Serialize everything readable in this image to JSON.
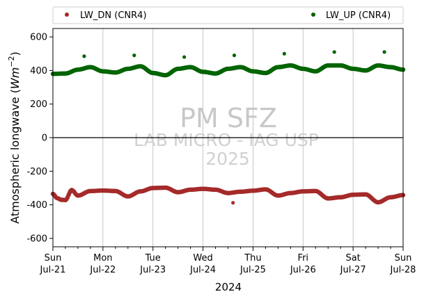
{
  "chart_data": {
    "type": "scatter",
    "title": "",
    "xlabel": "2024",
    "ylabel": "Atmospheric longwave (W m⁻²)",
    "ylim": [
      -650,
      650
    ],
    "yticks": [
      -600,
      -400,
      -200,
      0,
      200,
      400,
      600
    ],
    "xlim_days": [
      0,
      7
    ],
    "xticks": [
      {
        "day": "Sun",
        "date": "Jul-21"
      },
      {
        "day": "Mon",
        "date": "Jul-22"
      },
      {
        "day": "Tue",
        "date": "Jul-23"
      },
      {
        "day": "Wed",
        "date": "Jul-24"
      },
      {
        "day": "Thu",
        "date": "Jul-25"
      },
      {
        "day": "Fri",
        "date": "Jul-26"
      },
      {
        "day": "Sat",
        "date": "Jul-27"
      },
      {
        "day": "Sun",
        "date": "Jul-28"
      }
    ],
    "grid": "vertical at day ticks",
    "zero_line": true,
    "legend_placement": "top, above plot, two columns",
    "series": [
      {
        "name": "LW_DN (CNR4)",
        "color": "#a52a2a",
        "x": [
          "2024-07-21 00:00",
          "2024-07-21 02:00",
          "2024-07-21 04:00",
          "2024-07-21 06:00",
          "2024-07-21 09:00",
          "2024-07-21 12:00",
          "2024-07-21 18:00",
          "2024-07-22 00:00",
          "2024-07-22 06:00",
          "2024-07-22 12:00",
          "2024-07-22 18:00",
          "2024-07-23 00:00",
          "2024-07-23 06:00",
          "2024-07-23 12:00",
          "2024-07-23 18:00",
          "2024-07-24 00:00",
          "2024-07-24 06:00",
          "2024-07-24 12:00",
          "2024-07-24 14:24",
          "2024-07-24 18:00",
          "2024-07-25 00:00",
          "2024-07-25 06:00",
          "2024-07-25 12:00",
          "2024-07-25 18:00",
          "2024-07-26 00:00",
          "2024-07-26 06:00",
          "2024-07-26 12:00",
          "2024-07-26 18:00",
          "2024-07-27 00:00",
          "2024-07-27 06:00",
          "2024-07-27 12:00",
          "2024-07-27 18:00",
          "2024-07-28 00:00"
        ],
        "y": [
          -335,
          -360,
          -370,
          -372,
          -312,
          -345,
          -318,
          -315,
          -318,
          -350,
          -320,
          -300,
          -298,
          -325,
          -310,
          -305,
          -310,
          -330,
          -388,
          -322,
          -316,
          -308,
          -345,
          -330,
          -320,
          -318,
          -362,
          -355,
          -340,
          -338,
          -385,
          -355,
          -342
        ]
      },
      {
        "name": "LW_UP (CNR4)",
        "color": "#006400",
        "x": [
          "2024-07-21 00:00",
          "2024-07-21 06:00",
          "2024-07-21 12:00",
          "2024-07-21 15:00",
          "2024-07-21 18:00",
          "2024-07-22 00:00",
          "2024-07-22 06:00",
          "2024-07-22 12:00",
          "2024-07-22 15:00",
          "2024-07-22 18:00",
          "2024-07-23 00:00",
          "2024-07-23 06:00",
          "2024-07-23 12:00",
          "2024-07-23 15:00",
          "2024-07-23 18:00",
          "2024-07-24 00:00",
          "2024-07-24 06:00",
          "2024-07-24 12:00",
          "2024-07-24 15:00",
          "2024-07-24 18:00",
          "2024-07-25 00:00",
          "2024-07-25 06:00",
          "2024-07-25 12:00",
          "2024-07-25 15:00",
          "2024-07-25 18:00",
          "2024-07-26 00:00",
          "2024-07-26 06:00",
          "2024-07-26 12:00",
          "2024-07-26 15:00",
          "2024-07-26 18:00",
          "2024-07-27 00:00",
          "2024-07-27 06:00",
          "2024-07-27 12:00",
          "2024-07-27 15:00",
          "2024-07-27 18:00",
          "2024-07-28 00:00"
        ],
        "y": [
          380,
          382,
          405,
          485,
          420,
          395,
          388,
          410,
          490,
          425,
          385,
          372,
          410,
          480,
          420,
          392,
          382,
          410,
          490,
          420,
          395,
          385,
          420,
          500,
          430,
          410,
          395,
          430,
          510,
          430,
          410,
          400,
          430,
          510,
          420,
          405
        ]
      }
    ],
    "watermark": [
      "PM SFZ",
      "LAB MICRO - IAG USP",
      "2025"
    ]
  }
}
